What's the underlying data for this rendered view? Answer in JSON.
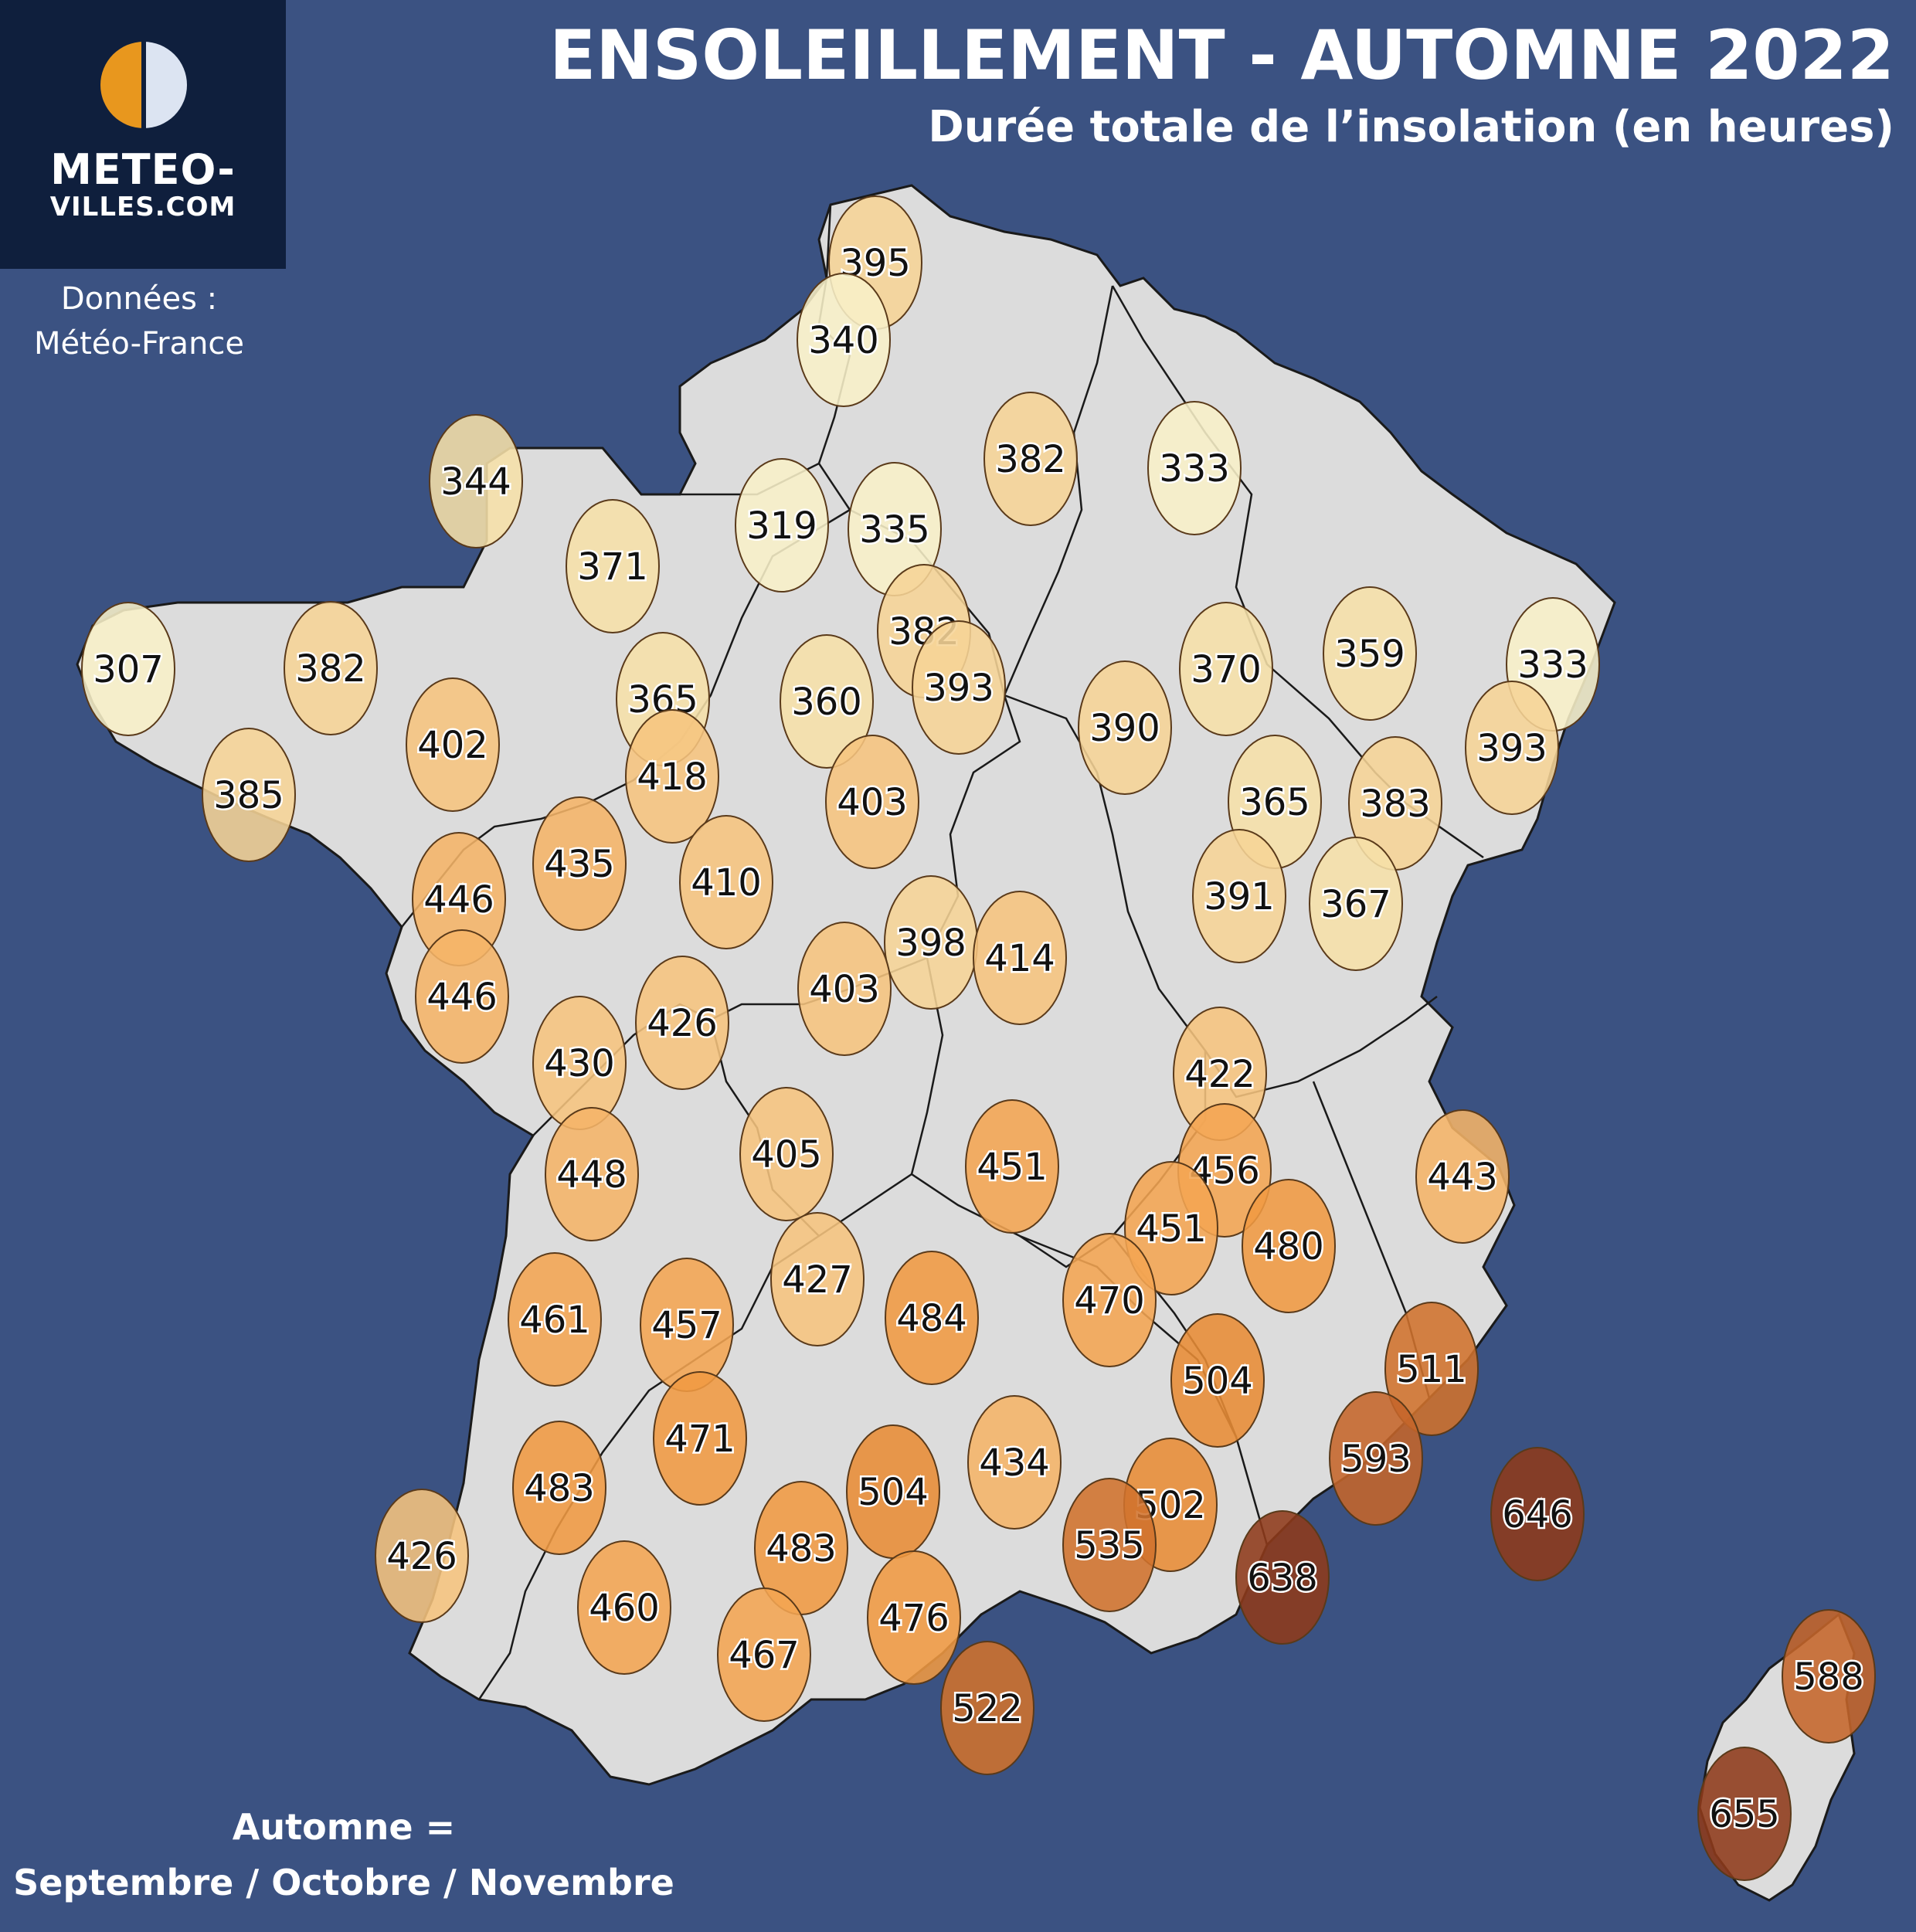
{
  "header": {
    "title": "ENSOLEILLEMENT - AUTOMNE 2022",
    "subtitle": "Durée totale de l’insolation (en heures)"
  },
  "logo": {
    "line1": "METEO-",
    "line2": "VILLES.COM",
    "icon": "half-sun-icon"
  },
  "source": {
    "line1": "Données :",
    "line2": "Météo-France"
  },
  "legend": {
    "line1": "Automne =",
    "line2": "Septembre / Octobre / Novembre"
  },
  "colors": {
    "background": "#3b5282",
    "land": "#dcdcdc",
    "scale": [
      {
        "max": 340,
        "color": "#f8f0c8"
      },
      {
        "max": 380,
        "color": "#f6e0a8"
      },
      {
        "max": 400,
        "color": "#f6d496"
      },
      {
        "max": 430,
        "color": "#f6c47e"
      },
      {
        "max": 450,
        "color": "#f5b468"
      },
      {
        "max": 470,
        "color": "#f4a552"
      },
      {
        "max": 490,
        "color": "#f09a42"
      },
      {
        "max": 510,
        "color": "#e88c36"
      },
      {
        "max": 560,
        "color": "#d0722c"
      },
      {
        "max": 600,
        "color": "#c5652a"
      },
      {
        "max": 700,
        "color": "#8e3a1a"
      }
    ]
  },
  "stations": [
    {
      "value": 395
    },
    {
      "value": 340
    },
    {
      "value": 344
    },
    {
      "value": 382
    },
    {
      "value": 333
    },
    {
      "value": 319
    },
    {
      "value": 335
    },
    {
      "value": 371
    },
    {
      "value": 307
    },
    {
      "value": 382
    },
    {
      "value": 382
    },
    {
      "value": 393
    },
    {
      "value": 370
    },
    {
      "value": 359
    },
    {
      "value": 333
    },
    {
      "value": 365
    },
    {
      "value": 360
    },
    {
      "value": 390
    },
    {
      "value": 393
    },
    {
      "value": 402
    },
    {
      "value": 418
    },
    {
      "value": 385
    },
    {
      "value": 403
    },
    {
      "value": 365
    },
    {
      "value": 383
    },
    {
      "value": 435
    },
    {
      "value": 410
    },
    {
      "value": 446
    },
    {
      "value": 391
    },
    {
      "value": 367
    },
    {
      "value": 398
    },
    {
      "value": 414
    },
    {
      "value": 446
    },
    {
      "value": 426
    },
    {
      "value": 403
    },
    {
      "value": 430
    },
    {
      "value": 422
    },
    {
      "value": 405
    },
    {
      "value": 451
    },
    {
      "value": 448
    },
    {
      "value": 456
    },
    {
      "value": 443
    },
    {
      "value": 451
    },
    {
      "value": 480
    },
    {
      "value": 427
    },
    {
      "value": 461
    },
    {
      "value": 457
    },
    {
      "value": 484
    },
    {
      "value": 470
    },
    {
      "value": 511
    },
    {
      "value": 504
    },
    {
      "value": 471
    },
    {
      "value": 593
    },
    {
      "value": 434
    },
    {
      "value": 483
    },
    {
      "value": 504
    },
    {
      "value": 502
    },
    {
      "value": 646
    },
    {
      "value": 535
    },
    {
      "value": 426
    },
    {
      "value": 483
    },
    {
      "value": 638
    },
    {
      "value": 460
    },
    {
      "value": 476
    },
    {
      "value": 467
    },
    {
      "value": 588
    },
    {
      "value": 522
    },
    {
      "value": 655
    }
  ]
}
